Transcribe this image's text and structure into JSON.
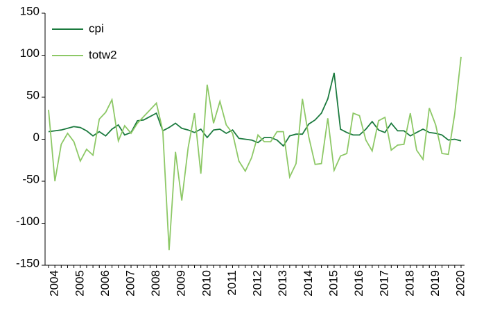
{
  "chart_data": {
    "type": "line",
    "categories": [
      null,
      "2004",
      null,
      null,
      null,
      "2005",
      null,
      null,
      null,
      "2006",
      null,
      null,
      null,
      "2007",
      null,
      null,
      null,
      "2008",
      null,
      null,
      null,
      "2009",
      null,
      null,
      null,
      "2010",
      null,
      null,
      null,
      "2011",
      null,
      null,
      null,
      "2012",
      null,
      null,
      null,
      "2013",
      null,
      null,
      null,
      "2014",
      null,
      null,
      null,
      "2015",
      null,
      null,
      null,
      "2016",
      null,
      null,
      null,
      "2017",
      null,
      null,
      null,
      "2018",
      null,
      null,
      null,
      "2019",
      null,
      null,
      null,
      "2020"
    ],
    "series": [
      {
        "name": "cpi",
        "color": "#1b7a3e",
        "values": [
          9,
          10,
          11,
          13,
          15,
          14,
          10,
          4,
          9,
          4,
          12,
          17,
          5,
          8,
          22,
          23,
          27,
          31,
          10,
          14,
          19,
          13,
          11,
          8,
          12,
          2,
          11,
          12,
          7,
          11,
          1,
          0,
          -1,
          -4,
          2,
          2,
          -1,
          -8,
          4,
          6,
          6,
          18,
          23,
          31,
          48,
          79,
          12,
          8,
          5,
          5,
          12,
          21,
          11,
          8,
          19,
          10,
          10,
          4,
          8,
          12,
          8,
          7,
          5,
          -1,
          0,
          -2
        ]
      },
      {
        "name": "totw2",
        "color": "#8dc866",
        "values": [
          35,
          -50,
          -6,
          7,
          -3,
          -26,
          -12,
          -19,
          24,
          32,
          47,
          -2,
          16,
          7,
          19,
          27,
          35,
          43,
          10,
          -132,
          -15,
          -73,
          -10,
          31,
          -41,
          65,
          19,
          45,
          17,
          7,
          -26,
          -38,
          -22,
          5,
          -3,
          -3,
          9,
          9,
          -45,
          -29,
          48,
          3,
          -30,
          -29,
          25,
          -37,
          -20,
          -17,
          31,
          28,
          -1,
          -14,
          22,
          26,
          -13,
          -7,
          -6,
          31,
          -13,
          -24,
          37,
          17,
          -17,
          -18,
          30,
          98
        ]
      }
    ],
    "ylim": [
      -150,
      150
    ],
    "yticks": [
      -150,
      -100,
      -50,
      0,
      50,
      100,
      150
    ],
    "grid": false,
    "legend": "top-left"
  }
}
